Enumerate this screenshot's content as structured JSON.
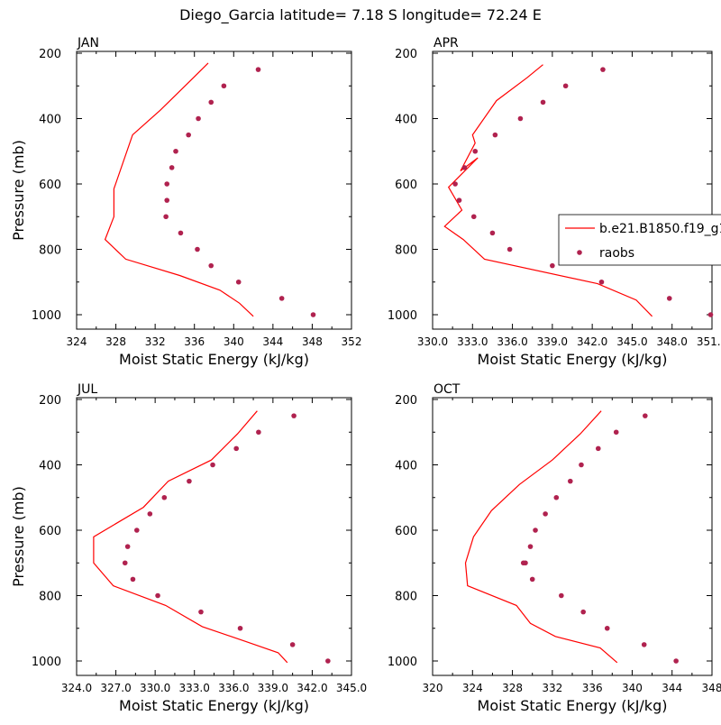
{
  "title": "Diego_Garcia  latitude= 7.18 S longitude= 72.24 E",
  "colors": {
    "model_line": "#ff0000",
    "obs_marker": "#b0224f",
    "axis": "#000000"
  },
  "legend": {
    "placement": "right",
    "entries": [
      {
        "label": "b.e21.B1850.f19_g1",
        "style": "line",
        "color": "#ff0000"
      },
      {
        "label": "raobs",
        "style": "marker",
        "color": "#b0224f"
      }
    ]
  },
  "chart_data": [
    {
      "type": "line",
      "panel": "JAN",
      "xlabel": "Moist Static Energy (kJ/kg)",
      "ylabel": "Pressure (mb)",
      "xlim": [
        324,
        352
      ],
      "xticks": [
        "324",
        "328",
        "332",
        "336",
        "340",
        "344",
        "348",
        "352"
      ],
      "ylim": [
        1000,
        200
      ],
      "yticks": [
        "200",
        "400",
        "600",
        "800",
        "1000"
      ],
      "series": [
        {
          "name": "b.e21.B1850.f19_g1",
          "kind": "line",
          "x": [
            337.4,
            335.9,
            332.5,
            329.7,
            327.8,
            327.8,
            327.8,
            326.9,
            329.0,
            334.5,
            338.6,
            340.6,
            342.0
          ],
          "y": [
            230,
            275,
            375,
            450,
            615,
            650,
            700,
            770,
            830,
            880,
            925,
            965,
            1005
          ]
        },
        {
          "name": "raobs",
          "kind": "points",
          "x": [
            342.5,
            339.0,
            337.7,
            336.4,
            335.4,
            334.1,
            333.7,
            333.2,
            333.2,
            333.1,
            334.6,
            336.3,
            337.7,
            340.5,
            344.9,
            348.1
          ],
          "y": [
            250,
            300,
            350,
            400,
            450,
            500,
            550,
            600,
            650,
            700,
            750,
            800,
            850,
            900,
            950,
            1000
          ]
        }
      ]
    },
    {
      "type": "line",
      "panel": "APR",
      "xlabel": "Moist Static Energy (kJ/kg)",
      "ylabel": "",
      "xlim": [
        330,
        351
      ],
      "xticks": [
        "330.0",
        "333.0",
        "336.0",
        "339.0",
        "342.0",
        "345.0",
        "348.0",
        "351.0"
      ],
      "ylim": [
        1000,
        200
      ],
      "yticks": [
        "200",
        "400",
        "600",
        "800",
        "1000"
      ],
      "series": [
        {
          "name": "b.e21.B1850.f19_g1",
          "kind": "line",
          "x": [
            338.3,
            337.1,
            334.8,
            333.0,
            333.2,
            332.1,
            333.4,
            331.2,
            332.2,
            330.9,
            332.3,
            333.9,
            342.4,
            345.3,
            346.5
          ],
          "y": [
            235,
            275,
            345,
            450,
            475,
            560,
            520,
            610,
            680,
            730,
            770,
            830,
            905,
            955,
            1005
          ]
        },
        {
          "name": "raobs",
          "kind": "points",
          "x": [
            342.8,
            340.0,
            338.3,
            336.6,
            334.7,
            333.2,
            332.4,
            331.7,
            332.0,
            333.1,
            334.5,
            335.8,
            339.0,
            342.7,
            347.8,
            350.9
          ],
          "y": [
            250,
            300,
            350,
            400,
            450,
            500,
            550,
            600,
            650,
            700,
            750,
            800,
            850,
            900,
            950,
            1000
          ]
        }
      ]
    },
    {
      "type": "line",
      "panel": "JUL",
      "xlabel": "Moist Static Energy (kJ/kg)",
      "ylabel": "Pressure (mb)",
      "xlim": [
        324,
        345
      ],
      "xticks": [
        "324.0",
        "327.0",
        "330.0",
        "333.0",
        "336.0",
        "339.0",
        "342.0",
        "345.0"
      ],
      "ylim": [
        1000,
        200
      ],
      "yticks": [
        "200",
        "400",
        "600",
        "800",
        "1000"
      ],
      "series": [
        {
          "name": "b.e21.B1850.f19_g1",
          "kind": "line",
          "x": [
            337.8,
            336.3,
            334.3,
            331.0,
            329.1,
            325.3,
            325.3,
            326.8,
            330.8,
            333.6,
            336.9,
            339.4,
            340.1
          ],
          "y": [
            235,
            305,
            385,
            450,
            530,
            620,
            700,
            770,
            830,
            895,
            940,
            975,
            1005
          ]
        },
        {
          "name": "raobs",
          "kind": "points",
          "x": [
            340.6,
            337.9,
            336.2,
            334.4,
            332.6,
            330.7,
            329.6,
            328.6,
            327.9,
            327.7,
            328.3,
            330.2,
            333.5,
            336.5,
            340.5,
            343.2
          ],
          "y": [
            250,
            300,
            350,
            400,
            450,
            500,
            550,
            600,
            650,
            700,
            750,
            800,
            850,
            900,
            950,
            1000
          ]
        }
      ]
    },
    {
      "type": "line",
      "panel": "OCT",
      "xlabel": "Moist Static Energy (kJ/kg)",
      "ylabel": "",
      "xlim": [
        320,
        348
      ],
      "xticks": [
        "320",
        "324",
        "328",
        "332",
        "336",
        "340",
        "344",
        "348"
      ],
      "ylim": [
        1000,
        200
      ],
      "yticks": [
        "200",
        "400",
        "600",
        "800",
        "1000"
      ],
      "series": [
        {
          "name": "b.e21.B1850.f19_g1",
          "kind": "line",
          "x": [
            336.9,
            334.8,
            332.0,
            328.7,
            325.9,
            324.1,
            323.3,
            323.5,
            328.4,
            329.8,
            332.3,
            336.8,
            338.5
          ],
          "y": [
            235,
            305,
            385,
            460,
            540,
            620,
            700,
            770,
            830,
            885,
            925,
            960,
            1005
          ]
        },
        {
          "name": "raobs",
          "kind": "points",
          "x": [
            341.3,
            338.4,
            336.6,
            334.9,
            333.8,
            332.4,
            331.3,
            330.3,
            329.8,
            329.3,
            329.1,
            330.0,
            332.9,
            335.1,
            337.5,
            341.2,
            344.4
          ],
          "y": [
            250,
            300,
            350,
            400,
            450,
            500,
            550,
            600,
            650,
            700,
            700,
            750,
            800,
            850,
            900,
            950,
            1000
          ]
        }
      ]
    }
  ]
}
